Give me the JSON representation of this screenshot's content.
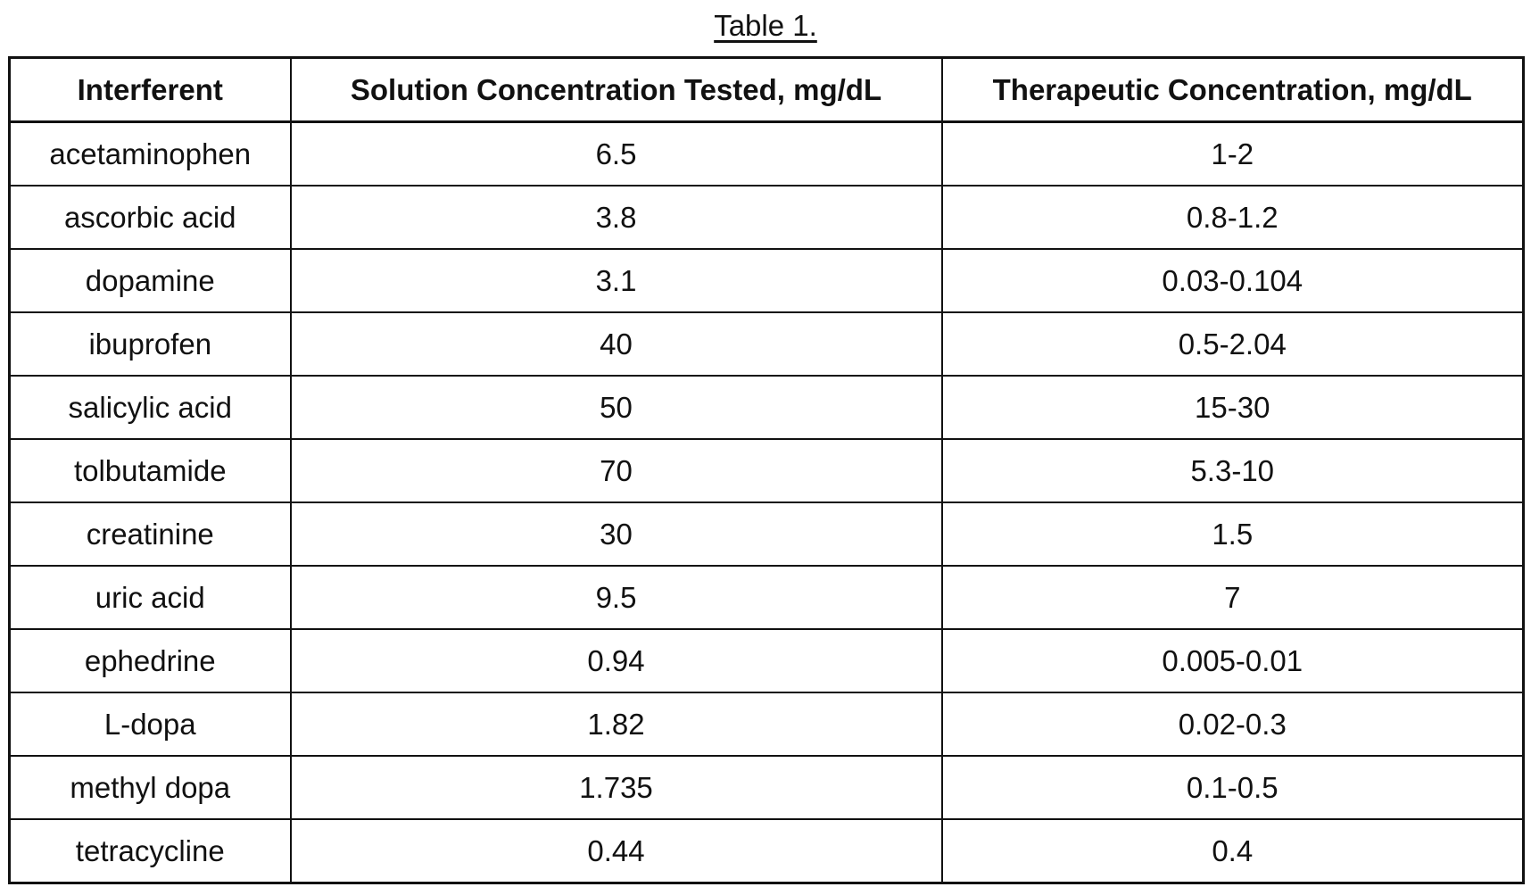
{
  "title": "Table 1.",
  "columns": [
    "Interferent",
    "Solution Concentration Tested, mg/dL",
    "Therapeutic Concentration, mg/dL"
  ],
  "rows": [
    [
      "acetaminophen",
      "6.5",
      "1-2"
    ],
    [
      "ascorbic acid",
      "3.8",
      "0.8-1.2"
    ],
    [
      "dopamine",
      "3.1",
      "0.03-0.104"
    ],
    [
      "ibuprofen",
      "40",
      "0.5-2.04"
    ],
    [
      "salicylic acid",
      "50",
      "15-30"
    ],
    [
      "tolbutamide",
      "70",
      "5.3-10"
    ],
    [
      "creatinine",
      "30",
      "1.5"
    ],
    [
      "uric acid",
      "9.5",
      "7"
    ],
    [
      "ephedrine",
      "0.94",
      "0.005-0.01"
    ],
    [
      "L-dopa",
      "1.82",
      "0.02-0.3"
    ],
    [
      "methyl dopa",
      "1.735",
      "0.1-0.5"
    ],
    [
      "tetracycline",
      "0.44",
      "0.4"
    ]
  ]
}
